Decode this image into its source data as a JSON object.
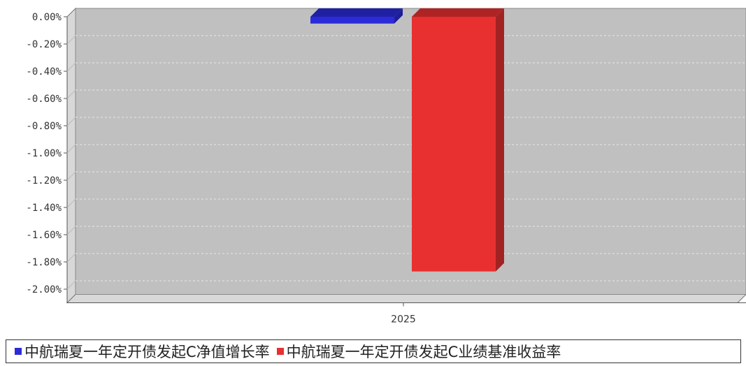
{
  "chart_data": {
    "type": "bar",
    "categories": [
      "2025"
    ],
    "series": [
      {
        "name": "中航瑞夏一年定开债发起C净值增长率",
        "values": [
          -0.05
        ],
        "color": "#2b2bd9"
      },
      {
        "name": "中航瑞夏一年定开债发起C业绩基准收益率",
        "values": [
          -1.87
        ],
        "color": "#e83030"
      }
    ],
    "yticks": [
      "0.00%",
      "-0.20%",
      "-0.40%",
      "-0.60%",
      "-0.80%",
      "-1.00%",
      "-1.20%",
      "-1.40%",
      "-1.60%",
      "-1.80%",
      "-2.00%"
    ],
    "ylim": [
      -2.1,
      0
    ],
    "grid": true,
    "legend_position": "bottom",
    "colors": {
      "plot_background": "#c0c0c0",
      "side_wall": "#d8d8d8",
      "floor": "#d8d8d8"
    }
  },
  "legend": {
    "items": [
      {
        "label": "中航瑞夏一年定开债发起C净值增长率",
        "color": "#2b2bd9"
      },
      {
        "label": "中航瑞夏一年定开债发起C业绩基准收益率",
        "color": "#e83030"
      }
    ]
  }
}
